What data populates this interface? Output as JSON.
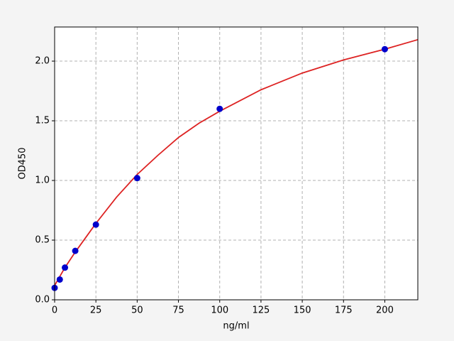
{
  "chart_data": {
    "type": "scatter",
    "xlabel": "ng/ml",
    "ylabel": "OD450",
    "xlim": [
      0,
      220
    ],
    "ylim": [
      0,
      2.286
    ],
    "xticks": [
      0,
      25,
      50,
      75,
      100,
      125,
      150,
      175,
      200
    ],
    "yticks": [
      {
        "value": 0,
        "label": "0.0"
      },
      0.5,
      {
        "value": 1,
        "label": "1.0"
      },
      1.5,
      {
        "value": 2,
        "label": "2.0"
      }
    ],
    "grid": true,
    "series": [
      {
        "type": "line",
        "color": "#dd2222",
        "x": [
          0,
          6.25,
          12.5,
          25,
          37.5,
          50,
          62.5,
          75,
          87.5,
          100,
          125,
          150,
          175,
          200,
          220
        ],
        "values": [
          0.12,
          0.27,
          0.4,
          0.64,
          0.86,
          1.05,
          1.21,
          1.36,
          1.48,
          1.58,
          1.76,
          1.9,
          2.01,
          2.1,
          2.18
        ]
      },
      {
        "type": "scatter",
        "color": "#0000cc",
        "x": [
          0,
          3.125,
          6.25,
          12.5,
          25,
          50,
          100,
          200
        ],
        "values": [
          0.1,
          0.17,
          0.27,
          0.41,
          0.63,
          1.02,
          1.6,
          2.1
        ]
      }
    ]
  }
}
